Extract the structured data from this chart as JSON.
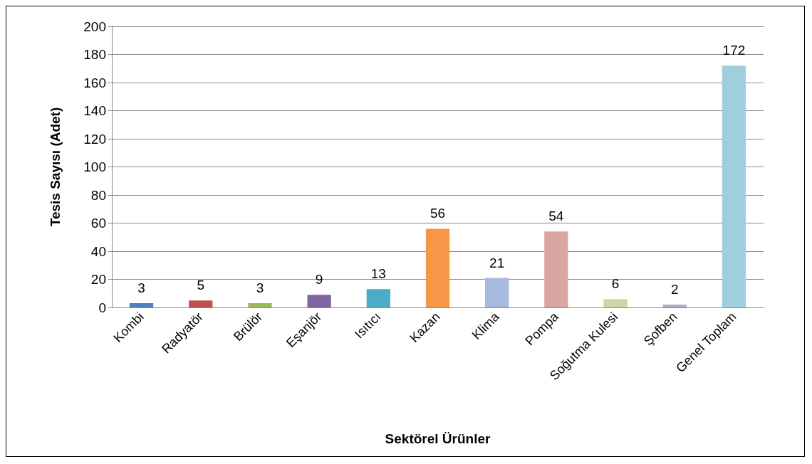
{
  "chart_data": {
    "type": "bar",
    "xlabel": "Sektörel Ürünler",
    "ylabel": "Tesis Sayısı (Adet)",
    "categories": [
      "Kombi",
      "Radyatör",
      "Brülör",
      "Eşanjör",
      "Isıtıcı",
      "Kazan",
      "Klima",
      "Pompa",
      "Soğutma Kulesi",
      "Şofben",
      "Genel Toplam"
    ],
    "values": [
      3,
      5,
      3,
      9,
      13,
      56,
      21,
      54,
      6,
      2,
      172
    ],
    "colors": [
      "#4f81bd",
      "#c0504d",
      "#9bbb59",
      "#8064a2",
      "#4bacc6",
      "#f79646",
      "#a7b9dd",
      "#dba5a4",
      "#c9d9a6",
      "#b7a9c8",
      "#9fcfdc"
    ],
    "ylim": [
      0,
      200
    ],
    "yticks": [
      0,
      20,
      40,
      60,
      80,
      100,
      120,
      140,
      160,
      180,
      200
    ],
    "grid": "y",
    "data_labels": true
  }
}
